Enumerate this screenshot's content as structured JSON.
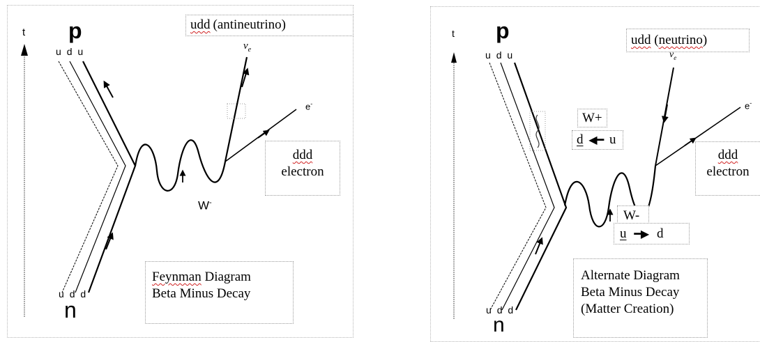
{
  "left": {
    "time_axis": "t",
    "proton": "p",
    "proton_quarks": [
      "u",
      "d",
      "u"
    ],
    "neutron": "n",
    "neutron_quarks": [
      "u",
      "d",
      "d"
    ],
    "boson": "W",
    "boson_sup": "-",
    "antineutrino_symbol": "v",
    "antineutrino_bar": "‾",
    "antineutrino_sub": "e",
    "electron_symbol": "e",
    "electron_sup": "-",
    "box_antineutrino": {
      "quarks": "udd",
      "label": "(antineutrino)"
    },
    "box_electron": {
      "quarks": "ddd",
      "label": "electron"
    },
    "box_caption": {
      "line1_word": "Feynman",
      "line1_rest": " Diagram",
      "line2": "Beta Minus Decay"
    }
  },
  "right": {
    "time_axis": "t",
    "proton": "p",
    "proton_quarks": [
      "u",
      "d",
      "u"
    ],
    "neutron": "n",
    "neutron_quarks": [
      "u",
      "d",
      "d"
    ],
    "neutrino_symbol": "v",
    "neutrino_sub": "e",
    "electron_symbol": "e",
    "electron_sup": "-",
    "box_neutrino": {
      "quarks": "udd",
      "label_open": " (",
      "label_word": "neutrino",
      "label_close": ")"
    },
    "box_wplus": {
      "label": "W+",
      "from": "d",
      "to": "u"
    },
    "box_wminus": {
      "label": "W-",
      "from": "u",
      "to": "d"
    },
    "box_electron": {
      "quarks": "ddd",
      "label": "electron"
    },
    "box_caption": {
      "line1": "Alternate Diagram",
      "line2": "Beta Minus Decay",
      "line3": "(Matter Creation)"
    }
  }
}
